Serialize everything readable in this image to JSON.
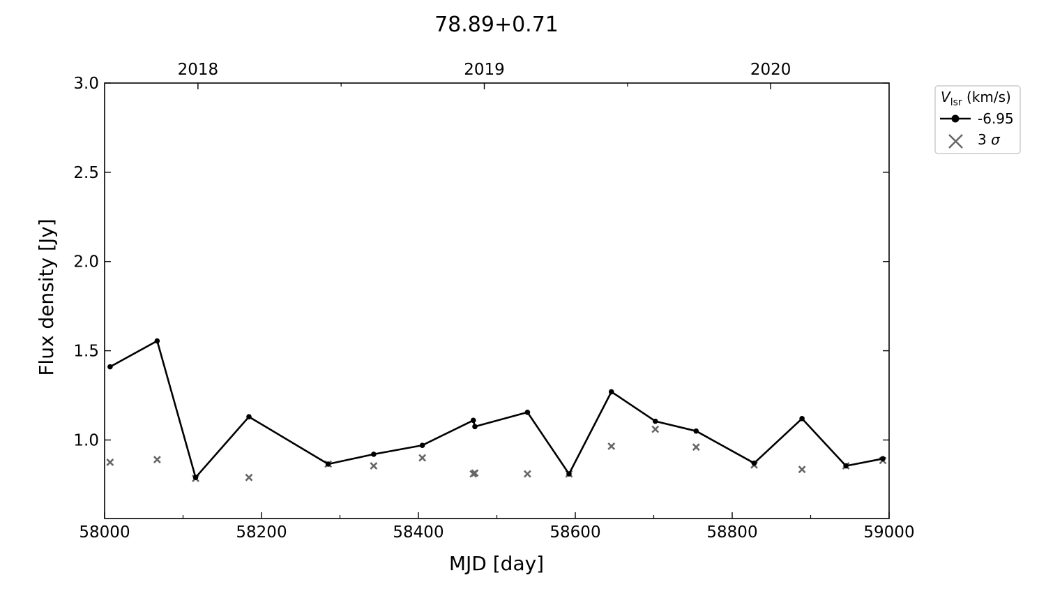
{
  "chart_data": {
    "type": "line",
    "title": "78.89+0.71",
    "xlabel": "MJD [day]",
    "ylabel": "Flux density [Jy]",
    "xlim": [
      58000,
      59000
    ],
    "ylim": [
      0.56,
      3.0
    ],
    "x_ticks": [
      {
        "value": 58000,
        "label": "58000"
      },
      {
        "value": 58200,
        "label": "58200"
      },
      {
        "value": 58400,
        "label": "58400"
      },
      {
        "value": 58600,
        "label": "58600"
      },
      {
        "value": 58800,
        "label": "58800"
      },
      {
        "value": 59000,
        "label": "59000"
      }
    ],
    "y_ticks": [
      {
        "value": 1.0,
        "label": "1.0"
      },
      {
        "value": 1.5,
        "label": "1.5"
      },
      {
        "value": 2.0,
        "label": "2.0"
      },
      {
        "value": 2.5,
        "label": "2.5"
      },
      {
        "value": 3.0,
        "label": "3.0"
      }
    ],
    "top_axis_ticks": [
      {
        "value": 58119,
        "label": "2018"
      },
      {
        "value": 58484,
        "label": "2019"
      },
      {
        "value": 58849,
        "label": "2020"
      }
    ],
    "legend": {
      "title_italic": "V",
      "title_sub": "lsr",
      "title_rest": " (km/s)",
      "position": "outside upper-right",
      "entries": [
        {
          "label": "-6.95",
          "marker": "line-dot",
          "color": "#000000"
        },
        {
          "label": "3 ",
          "label_symbol": "σ",
          "marker": "cross",
          "color": "#666666"
        }
      ]
    },
    "grid": false,
    "series": [
      {
        "name": "-6.95",
        "color": "#000000",
        "x": [
          58007,
          58067,
          58116,
          58184,
          58285,
          58343,
          58405,
          58470,
          58472,
          58539,
          58592,
          58646,
          58702,
          58754,
          58828,
          58889,
          58945,
          58992
        ],
        "y": [
          1.41,
          1.555,
          0.79,
          1.13,
          0.865,
          0.92,
          0.97,
          1.11,
          1.075,
          1.155,
          0.81,
          1.27,
          1.105,
          1.05,
          0.87,
          1.12,
          0.855,
          0.895
        ]
      },
      {
        "name": "3 σ",
        "color": "#666666",
        "marker": "cross",
        "x": [
          58007,
          58067,
          58116,
          58184,
          58285,
          58343,
          58405,
          58470,
          58472,
          58539,
          58592,
          58646,
          58702,
          58754,
          58828,
          58889,
          58945,
          58992
        ],
        "y": [
          0.875,
          0.89,
          0.785,
          0.79,
          0.865,
          0.855,
          0.9,
          0.81,
          0.815,
          0.81,
          0.81,
          0.965,
          1.06,
          0.96,
          0.86,
          0.835,
          0.855,
          0.885
        ]
      }
    ]
  }
}
